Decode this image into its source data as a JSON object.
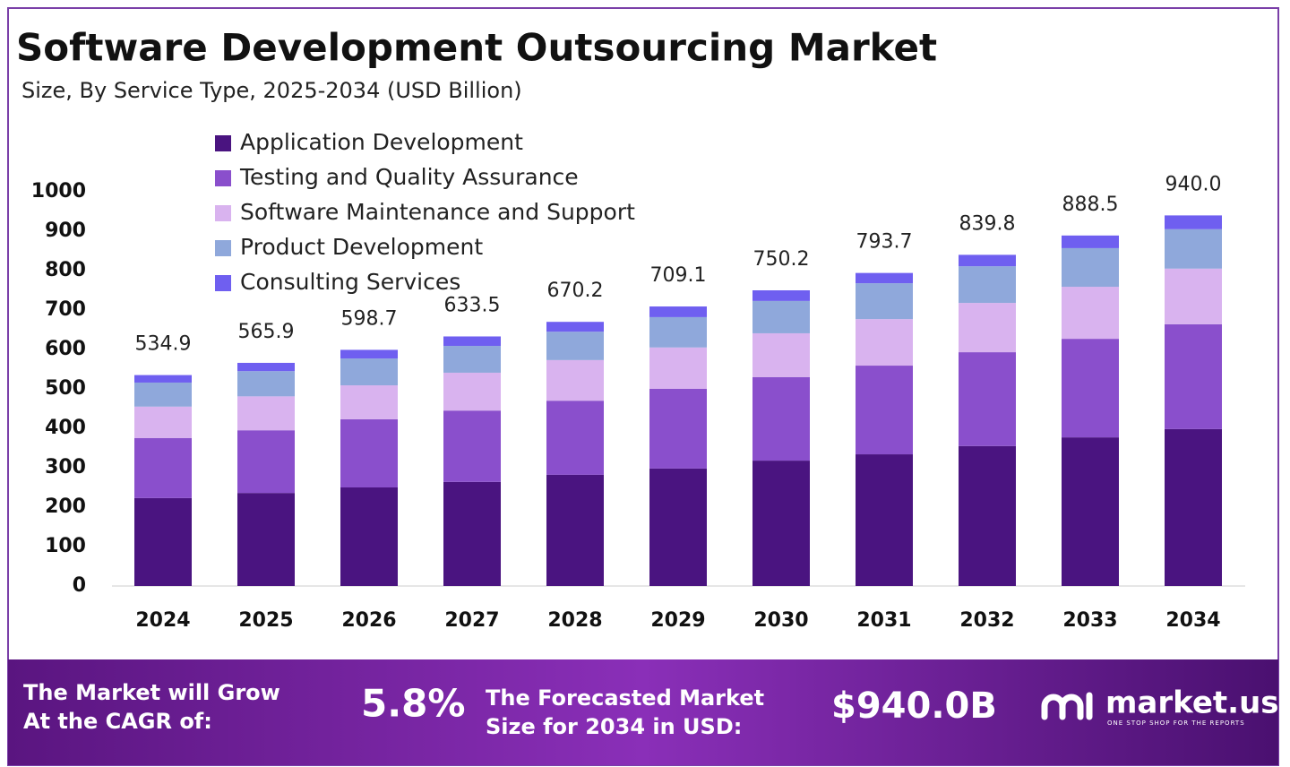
{
  "chart_data": {
    "type": "stacked-bar",
    "title": "Software Development Outsourcing Market",
    "subtitle": "Size, By Service Type, 2025-2034 (USD Billion)",
    "categories": [
      "2024",
      "2025",
      "2026",
      "2027",
      "2028",
      "2029",
      "2030",
      "2031",
      "2032",
      "2033",
      "2034"
    ],
    "series": [
      {
        "name": "Application Development",
        "color": "#4a1480",
        "values": [
          223,
          236,
          250,
          264,
          282,
          298,
          318,
          334,
          355,
          377,
          398
        ]
      },
      {
        "name": "Testing and Quality Assurance",
        "color": "#8a4fcc",
        "values": [
          152,
          159,
          173,
          181,
          188,
          202,
          212,
          225,
          238,
          250,
          266
        ]
      },
      {
        "name": "Software Maintenance and Support",
        "color": "#d9b3ef",
        "values": [
          80,
          86,
          86,
          96,
          103,
          105,
          111,
          118,
          125,
          132,
          141
        ]
      },
      {
        "name": "Product Development",
        "color": "#8fa8db",
        "values": [
          61,
          64,
          68,
          68,
          72,
          77,
          82,
          91,
          93,
          98,
          100
        ]
      },
      {
        "name": "Consulting Services",
        "color": "#6f5ff0",
        "values": [
          19,
          21,
          22,
          24,
          25,
          27,
          27,
          26,
          29,
          32,
          35
        ]
      }
    ],
    "totals": {
      "values": [
        534.9,
        565.9,
        598.7,
        633.5,
        670.2,
        709.1,
        750.2,
        793.7,
        839.8,
        888.5,
        940.0
      ],
      "value_labels": [
        "534.9",
        "565.9",
        "598.7",
        "633.5",
        "670.2",
        "709.1",
        "750.2",
        "793.7",
        "839.8",
        "888.5",
        "940.0"
      ]
    },
    "ylim": [
      0,
      1000
    ],
    "yticks": [
      0,
      100,
      200,
      300,
      400,
      500,
      600,
      700,
      800,
      900,
      1000
    ],
    "legend": "top-left"
  },
  "footer": {
    "cagr_text": [
      "The Market will Grow",
      "At the CAGR of:"
    ],
    "cagr": "5.8%",
    "forecast_text": [
      "The Forecasted Market",
      "Size for 2034 in USD:"
    ],
    "forecast": "$940.0B",
    "brand": "market.us",
    "tagline": "ONE STOP SHOP FOR THE REPORTS"
  }
}
